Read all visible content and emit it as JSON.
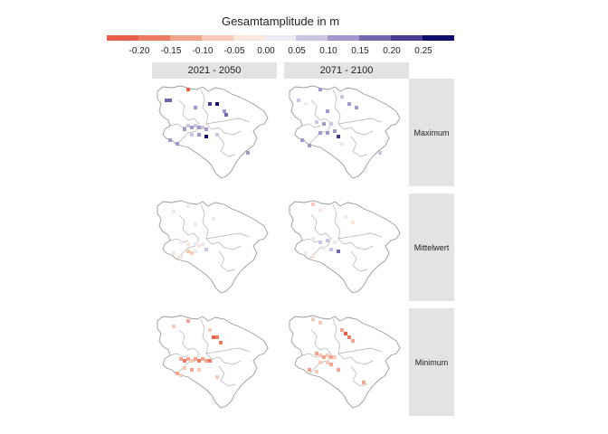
{
  "legend": {
    "title": "Gesamtamplitude in m",
    "ticks": [
      "-0.20",
      "-0.15",
      "-0.10",
      "-0.05",
      "0.00",
      "0.05",
      "0.10",
      "0.15",
      "0.20",
      "0.25"
    ],
    "colors": [
      "#e85f4a",
      "#ee7a63",
      "#f3a48d",
      "#f8cab8",
      "#fbe6dc",
      "#eeeaf4",
      "#cdc4e2",
      "#a596cb",
      "#7565ad",
      "#4a3a92",
      "#0e0e6e"
    ]
  },
  "facets": {
    "columns": [
      "2021 - 2050",
      "2071 - 2100"
    ],
    "rows": [
      "Maximum",
      "Mittelwert",
      "Minimum"
    ]
  }
}
